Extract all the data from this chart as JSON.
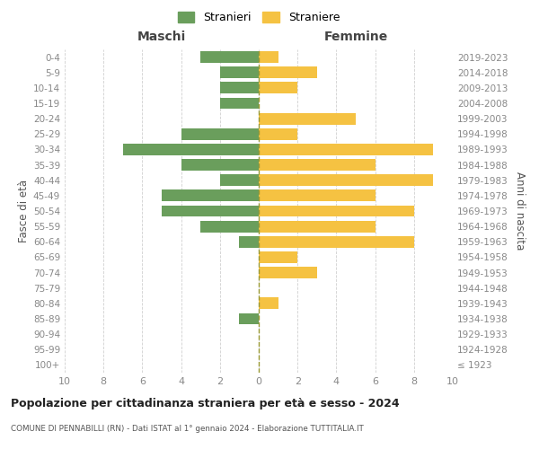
{
  "age_groups": [
    "100+",
    "95-99",
    "90-94",
    "85-89",
    "80-84",
    "75-79",
    "70-74",
    "65-69",
    "60-64",
    "55-59",
    "50-54",
    "45-49",
    "40-44",
    "35-39",
    "30-34",
    "25-29",
    "20-24",
    "15-19",
    "10-14",
    "5-9",
    "0-4"
  ],
  "birth_years": [
    "≤ 1923",
    "1924-1928",
    "1929-1933",
    "1934-1938",
    "1939-1943",
    "1944-1948",
    "1949-1953",
    "1954-1958",
    "1959-1963",
    "1964-1968",
    "1969-1973",
    "1974-1978",
    "1979-1983",
    "1984-1988",
    "1989-1993",
    "1994-1998",
    "1999-2003",
    "2004-2008",
    "2009-2013",
    "2014-2018",
    "2019-2023"
  ],
  "maschi": [
    0,
    0,
    0,
    1,
    0,
    0,
    0,
    0,
    1,
    3,
    5,
    5,
    2,
    4,
    7,
    4,
    0,
    2,
    2,
    2,
    3
  ],
  "femmine": [
    0,
    0,
    0,
    0,
    1,
    0,
    3,
    2,
    8,
    6,
    8,
    6,
    9,
    6,
    9,
    2,
    5,
    0,
    2,
    3,
    1
  ],
  "maschi_color": "#6a9e5c",
  "femmine_color": "#f5c242",
  "title": "Popolazione per cittadinanza straniera per età e sesso - 2024",
  "subtitle": "COMUNE DI PENNABILLI (RN) - Dati ISTAT al 1° gennaio 2024 - Elaborazione TUTTITALIA.IT",
  "xlabel_left": "Maschi",
  "xlabel_right": "Femmine",
  "ylabel_left": "Fasce di età",
  "ylabel_right": "Anni di nascita",
  "legend_stranieri": "Stranieri",
  "legend_straniere": "Straniere",
  "xlim": 10,
  "bg_color": "#ffffff",
  "grid_color": "#d0d0d0",
  "bar_height": 0.75,
  "dashed_line_color": "#999933"
}
